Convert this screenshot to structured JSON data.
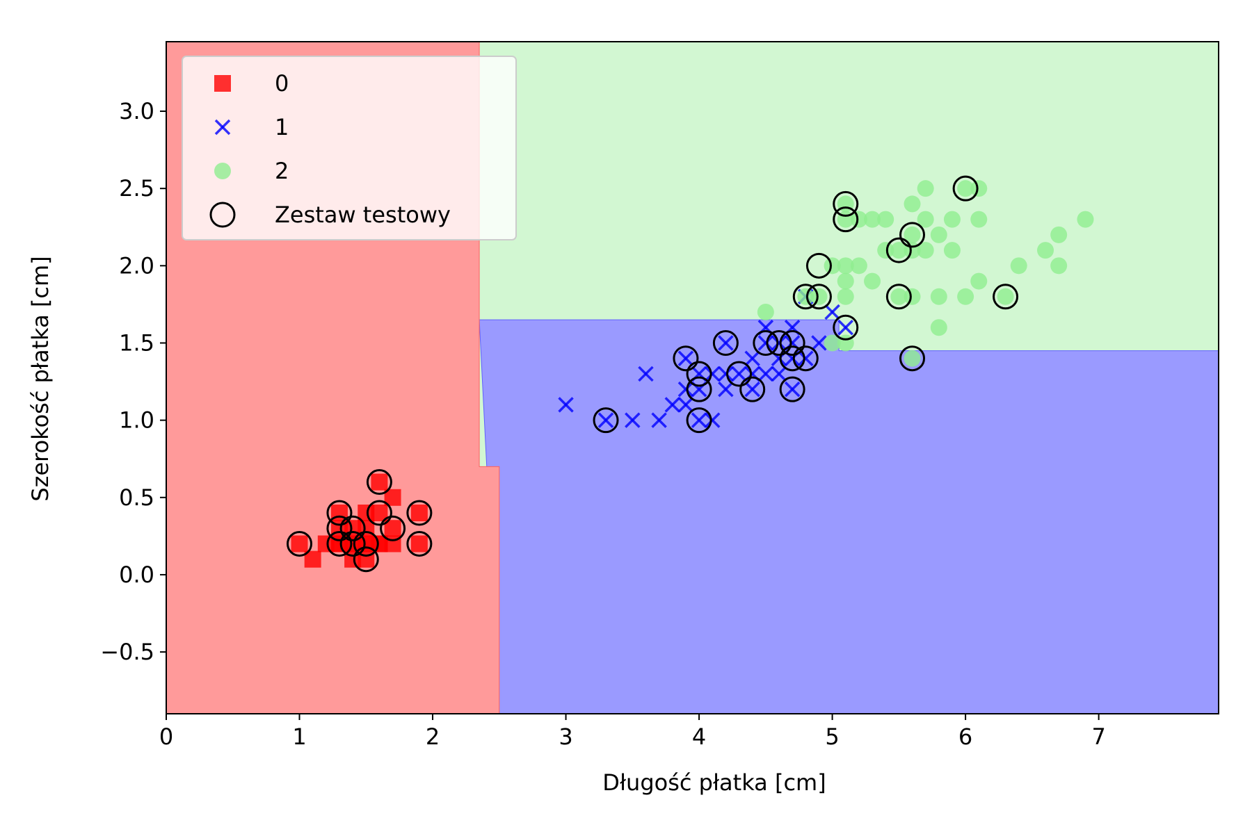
{
  "chart_data": {
    "type": "scatter",
    "title": "",
    "xlabel": "Długość płatka [cm]",
    "ylabel": "Szerokość płatka [cm]",
    "xlim": [
      0,
      7.9
    ],
    "ylim": [
      -0.9,
      3.45
    ],
    "xticks": [
      0,
      1,
      2,
      3,
      4,
      5,
      6,
      7
    ],
    "xtick_labels": [
      "0",
      "1",
      "2",
      "3",
      "4",
      "5",
      "6",
      "7"
    ],
    "yticks": [
      -0.5,
      0,
      0.5,
      1,
      1.5,
      2,
      2.5,
      3
    ],
    "ytick_labels": [
      "−0.5",
      "0.0",
      "0.5",
      "1.0",
      "1.5",
      "2.0",
      "2.5",
      "3.0"
    ],
    "grid": false,
    "legend": {
      "placement": "top-left"
    },
    "decision_regions": [
      {
        "class": "0",
        "color": "#ff9a9a",
        "x_max_upper": 2.35,
        "x_max_lower": 2.5,
        "y_split": 0.7
      },
      {
        "class": "1",
        "color": "#9a9aff",
        "y_max_left": 1.65,
        "y_max_right": 1.45,
        "x_split": 5.05
      },
      {
        "class": "2",
        "color": "#d2f7d2"
      }
    ],
    "series": [
      {
        "name": "0",
        "marker": "square",
        "color": "#ff0000",
        "points": [
          [
            1.0,
            0.2
          ],
          [
            1.1,
            0.1
          ],
          [
            1.2,
            0.2
          ],
          [
            1.3,
            0.2
          ],
          [
            1.3,
            0.3
          ],
          [
            1.3,
            0.4
          ],
          [
            1.4,
            0.2
          ],
          [
            1.4,
            0.3
          ],
          [
            1.4,
            0.1
          ],
          [
            1.5,
            0.2
          ],
          [
            1.5,
            0.4
          ],
          [
            1.5,
            0.1
          ],
          [
            1.5,
            0.3
          ],
          [
            1.6,
            0.2
          ],
          [
            1.6,
            0.4
          ],
          [
            1.6,
            0.6
          ],
          [
            1.7,
            0.3
          ],
          [
            1.7,
            0.5
          ],
          [
            1.7,
            0.2
          ],
          [
            1.9,
            0.2
          ],
          [
            1.9,
            0.4
          ],
          [
            1.4,
            0.2
          ],
          [
            1.3,
            0.2
          ],
          [
            1.5,
            0.2
          ],
          [
            1.6,
            0.2
          ]
        ]
      },
      {
        "name": "1",
        "marker": "x",
        "color": "#0000ff",
        "points": [
          [
            3.0,
            1.1
          ],
          [
            3.3,
            1.0
          ],
          [
            3.5,
            1.0
          ],
          [
            3.6,
            1.3
          ],
          [
            3.7,
            1.0
          ],
          [
            3.8,
            1.1
          ],
          [
            3.9,
            1.1
          ],
          [
            3.9,
            1.2
          ],
          [
            3.9,
            1.4
          ],
          [
            4.0,
            1.0
          ],
          [
            4.0,
            1.2
          ],
          [
            4.0,
            1.3
          ],
          [
            4.1,
            1.0
          ],
          [
            4.1,
            1.3
          ],
          [
            4.2,
            1.2
          ],
          [
            4.2,
            1.3
          ],
          [
            4.2,
            1.5
          ],
          [
            4.3,
            1.3
          ],
          [
            4.4,
            1.2
          ],
          [
            4.4,
            1.3
          ],
          [
            4.4,
            1.4
          ],
          [
            4.5,
            1.3
          ],
          [
            4.5,
            1.5
          ],
          [
            4.5,
            1.6
          ],
          [
            4.6,
            1.3
          ],
          [
            4.6,
            1.4
          ],
          [
            4.6,
            1.5
          ],
          [
            4.7,
            1.2
          ],
          [
            4.7,
            1.4
          ],
          [
            4.7,
            1.5
          ],
          [
            4.7,
            1.6
          ],
          [
            4.8,
            1.4
          ],
          [
            4.8,
            1.8
          ],
          [
            4.9,
            1.5
          ],
          [
            5.0,
            1.7
          ],
          [
            5.1,
            1.6
          ]
        ]
      },
      {
        "name": "2",
        "marker": "circle",
        "color": "#90ee90",
        "points": [
          [
            4.5,
            1.7
          ],
          [
            4.8,
            1.8
          ],
          [
            4.9,
            1.8
          ],
          [
            5.0,
            1.5
          ],
          [
            5.0,
            2.0
          ],
          [
            5.1,
            1.5
          ],
          [
            5.1,
            1.8
          ],
          [
            5.1,
            1.9
          ],
          [
            5.1,
            2.0
          ],
          [
            5.1,
            2.3
          ],
          [
            5.1,
            2.4
          ],
          [
            5.2,
            2.0
          ],
          [
            5.2,
            2.3
          ],
          [
            5.3,
            1.9
          ],
          [
            5.3,
            2.3
          ],
          [
            5.4,
            2.1
          ],
          [
            5.4,
            2.3
          ],
          [
            5.5,
            1.8
          ],
          [
            5.5,
            2.1
          ],
          [
            5.6,
            1.4
          ],
          [
            5.6,
            1.8
          ],
          [
            5.6,
            2.1
          ],
          [
            5.6,
            2.2
          ],
          [
            5.6,
            2.4
          ],
          [
            5.7,
            2.1
          ],
          [
            5.7,
            2.3
          ],
          [
            5.7,
            2.5
          ],
          [
            5.8,
            1.6
          ],
          [
            5.8,
            1.8
          ],
          [
            5.8,
            2.2
          ],
          [
            5.9,
            2.1
          ],
          [
            5.9,
            2.3
          ],
          [
            6.0,
            1.8
          ],
          [
            6.0,
            2.5
          ],
          [
            6.1,
            1.9
          ],
          [
            6.1,
            2.3
          ],
          [
            6.1,
            2.5
          ],
          [
            6.3,
            1.8
          ],
          [
            6.4,
            2.0
          ],
          [
            6.6,
            2.1
          ],
          [
            6.7,
            2.0
          ],
          [
            6.7,
            2.2
          ],
          [
            6.9,
            2.3
          ]
        ]
      },
      {
        "name": "Zestaw testowy",
        "marker": "open-circle",
        "color": "#000000",
        "points": [
          [
            1.0,
            0.2
          ],
          [
            1.3,
            0.4
          ],
          [
            1.3,
            0.3
          ],
          [
            1.3,
            0.2
          ],
          [
            1.4,
            0.3
          ],
          [
            1.4,
            0.2
          ],
          [
            1.5,
            0.2
          ],
          [
            1.5,
            0.1
          ],
          [
            1.6,
            0.6
          ],
          [
            1.6,
            0.4
          ],
          [
            1.7,
            0.3
          ],
          [
            1.9,
            0.4
          ],
          [
            1.9,
            0.2
          ],
          [
            3.3,
            1.0
          ],
          [
            3.9,
            1.4
          ],
          [
            4.0,
            1.3
          ],
          [
            4.0,
            1.2
          ],
          [
            4.0,
            1.0
          ],
          [
            4.2,
            1.5
          ],
          [
            4.3,
            1.3
          ],
          [
            4.4,
            1.2
          ],
          [
            4.5,
            1.5
          ],
          [
            4.6,
            1.5
          ],
          [
            4.7,
            1.5
          ],
          [
            4.7,
            1.4
          ],
          [
            4.7,
            1.2
          ],
          [
            4.8,
            1.4
          ],
          [
            5.1,
            1.6
          ],
          [
            4.8,
            1.8
          ],
          [
            4.9,
            2.0
          ],
          [
            4.9,
            1.8
          ],
          [
            5.1,
            2.4
          ],
          [
            5.1,
            2.3
          ],
          [
            5.5,
            2.1
          ],
          [
            5.5,
            1.8
          ],
          [
            5.6,
            2.2
          ],
          [
            5.6,
            1.4
          ],
          [
            6.0,
            2.5
          ],
          [
            6.3,
            1.8
          ]
        ]
      }
    ]
  }
}
